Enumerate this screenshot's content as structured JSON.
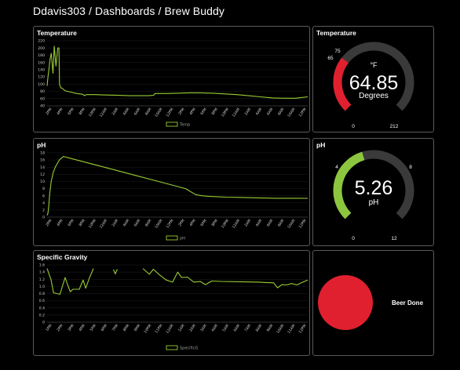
{
  "breadcrumb": "Ddavis303 / Dashboards / Brew Buddy",
  "panels": {
    "temp_chart_title": "Temperature",
    "temp_gauge_title": "Temperature",
    "ph_chart_title": "pH",
    "ph_gauge_title": "pH",
    "sg_chart_title": "Specific Gravity"
  },
  "gauges": {
    "temperature": {
      "value": "64.85",
      "unit_symbol": "°F",
      "unit_label": "Degrees",
      "min": "0",
      "max": "212",
      "low_threshold": "65",
      "high_threshold": "75",
      "fill_fraction": 0.306,
      "fill_color": "#e0202e",
      "track_color": "#3a3a3a"
    },
    "ph": {
      "value": "5.26",
      "unit_label": "pH",
      "min": "0",
      "max": "12",
      "low_threshold": "4",
      "high_threshold": "8",
      "fill_fraction": 0.438,
      "fill_color": "#8cc63f",
      "track_color": "#3a3a3a"
    }
  },
  "status": {
    "label": "Beer Done",
    "indicator_color": "#e0202e"
  },
  "chart_data": [
    {
      "type": "line",
      "title": "Temperature",
      "series": [
        {
          "name": "Temp",
          "color": "#9acd32",
          "points": [
            [
              0,
              95
            ],
            [
              0.15,
              120
            ],
            [
              0.3,
              140
            ],
            [
              0.5,
              170
            ],
            [
              0.7,
              185
            ],
            [
              1,
              130
            ],
            [
              1.2,
              205
            ],
            [
              1.5,
              150
            ],
            [
              1.8,
              200
            ],
            [
              2.0,
              200
            ],
            [
              2.1,
              100
            ],
            [
              2.3,
              90
            ],
            [
              2.6,
              88
            ],
            [
              3,
              82
            ],
            [
              4,
              78
            ],
            [
              5,
              74
            ],
            [
              6,
              72
            ],
            [
              6.3,
              68
            ],
            [
              6.6,
              71
            ],
            [
              8,
              71
            ],
            [
              10,
              70
            ],
            [
              12,
              69
            ],
            [
              14,
              68
            ],
            [
              16,
              68
            ],
            [
              17,
              68
            ],
            [
              18,
              69
            ],
            [
              18.2,
              74
            ],
            [
              20,
              74
            ],
            [
              22,
              75
            ],
            [
              24,
              76
            ],
            [
              26,
              76
            ],
            [
              28,
              75
            ],
            [
              30,
              73
            ],
            [
              32,
              71
            ],
            [
              34,
              68
            ],
            [
              36,
              65
            ],
            [
              38,
              62
            ],
            [
              40,
              61
            ],
            [
              42,
              61
            ],
            [
              44,
              65
            ]
          ]
        }
      ],
      "x_ticks": [
        "2PM",
        "4PM",
        "6PM",
        "8PM",
        "10PM",
        "12AM",
        "2AM",
        "4AM",
        "6AM",
        "8AM",
        "10AM",
        "12PM",
        "2PM",
        "4PM",
        "6PM",
        "8PM",
        "10PM",
        "12AM",
        "2AM",
        "4AM",
        "6AM",
        "8AM",
        "10AM",
        "12PM"
      ],
      "y_ticks": [
        "40",
        "60",
        "80",
        "100",
        "120",
        "140",
        "160",
        "180",
        "200",
        "220"
      ],
      "ylim": [
        40,
        220
      ]
    },
    {
      "type": "line",
      "title": "pH",
      "series": [
        {
          "name": "pH",
          "color": "#9acd32",
          "points": [
            [
              0,
              0.5
            ],
            [
              0.2,
              1
            ],
            [
              0.4,
              3
            ],
            [
              0.6,
              6
            ],
            [
              1,
              10
            ],
            [
              1.5,
              12.5
            ],
            [
              2,
              14
            ],
            [
              3,
              16
            ],
            [
              4,
              17
            ],
            [
              6,
              16.4
            ],
            [
              10,
              15.2
            ],
            [
              14,
              14
            ],
            [
              18,
              12.8
            ],
            [
              22,
              11.6
            ],
            [
              26,
              10.4
            ],
            [
              30,
              9.2
            ],
            [
              34,
              8
            ],
            [
              36.5,
              6.3
            ],
            [
              38,
              6
            ],
            [
              40,
              5.8
            ],
            [
              44,
              5.6
            ],
            [
              48,
              5.5
            ],
            [
              52,
              5.4
            ],
            [
              56,
              5.3
            ],
            [
              60,
              5.3
            ],
            [
              64,
              5.26
            ]
          ]
        }
      ],
      "x_ticks": [
        "2PM",
        "4PM",
        "6PM",
        "8PM",
        "10PM",
        "12AM",
        "2AM",
        "4AM",
        "6AM",
        "8AM",
        "10AM",
        "12PM",
        "2PM",
        "4PM",
        "6PM",
        "8PM",
        "10PM",
        "12AM",
        "2AM",
        "4AM",
        "6AM",
        "8AM",
        "10AM",
        "12PM"
      ],
      "y_ticks": [
        "0",
        "2",
        "4",
        "6",
        "8",
        "10",
        "12",
        "14",
        "16",
        "18"
      ],
      "ylim": [
        0,
        18
      ]
    },
    {
      "type": "line",
      "title": "Specific Gravity",
      "series": [
        {
          "name": "SpecificG",
          "color": "#9acd32",
          "segments": [
            [
              [
                0,
                1.5
              ],
              [
                0.6,
                1.2
              ],
              [
                1,
                0.82
              ],
              [
                2,
                0.78
              ],
              [
                2.4,
                1.02
              ],
              [
                2.8,
                1.25
              ],
              [
                3.2,
                1.04
              ],
              [
                3.6,
                0.85
              ],
              [
                4,
                0.92
              ],
              [
                5,
                0.92
              ],
              [
                5.6,
                1.18
              ],
              [
                6,
                0.95
              ],
              [
                6.6,
                1.25
              ],
              [
                7.2,
                1.5
              ]
            ],
            [
              [
                10.3,
                1.47
              ],
              [
                10.6,
                1.35
              ],
              [
                10.9,
                1.48
              ]
            ],
            [
              [
                14.9,
                1.5
              ],
              [
                15.9,
                1.34
              ],
              [
                16.5,
                1.48
              ],
              [
                17.5,
                1.32
              ],
              [
                18.5,
                1.18
              ],
              [
                19.5,
                1.12
              ],
              [
                20.3,
                1.4
              ],
              [
                20.9,
                1.25
              ],
              [
                21.8,
                1.26
              ],
              [
                22.8,
                1.12
              ],
              [
                23.8,
                1.14
              ],
              [
                24.6,
                1.05
              ],
              [
                25.6,
                1.15
              ],
              [
                27,
                1.14
              ],
              [
                30,
                1.13
              ],
              [
                33,
                1.12
              ],
              [
                34,
                1.11
              ],
              [
                35.2,
                1.1
              ],
              [
                35.8,
                0.96
              ],
              [
                36.5,
                1.05
              ],
              [
                37.2,
                1.04
              ],
              [
                38,
                1.08
              ],
              [
                38.8,
                1.04
              ],
              [
                39.5,
                1.1
              ],
              [
                40.5,
                1.18
              ]
            ]
          ]
        }
      ],
      "x_ticks": [
        "1PM",
        "2PM",
        "3PM",
        "4PM",
        "5PM",
        "6PM",
        "7PM",
        "8PM",
        "9PM",
        "10PM",
        "11PM",
        "12AM",
        "1AM",
        "2AM",
        "3AM",
        "4AM",
        "5AM",
        "6AM",
        "7AM",
        "8AM",
        "9AM",
        "10AM",
        "11AM",
        "12PM"
      ],
      "y_ticks": [
        "0",
        "0.2",
        "0.4",
        "0.6",
        "0.8",
        "1.0",
        "1.2",
        "1.4",
        "1.6"
      ],
      "ylim": [
        0,
        1.6
      ]
    }
  ]
}
